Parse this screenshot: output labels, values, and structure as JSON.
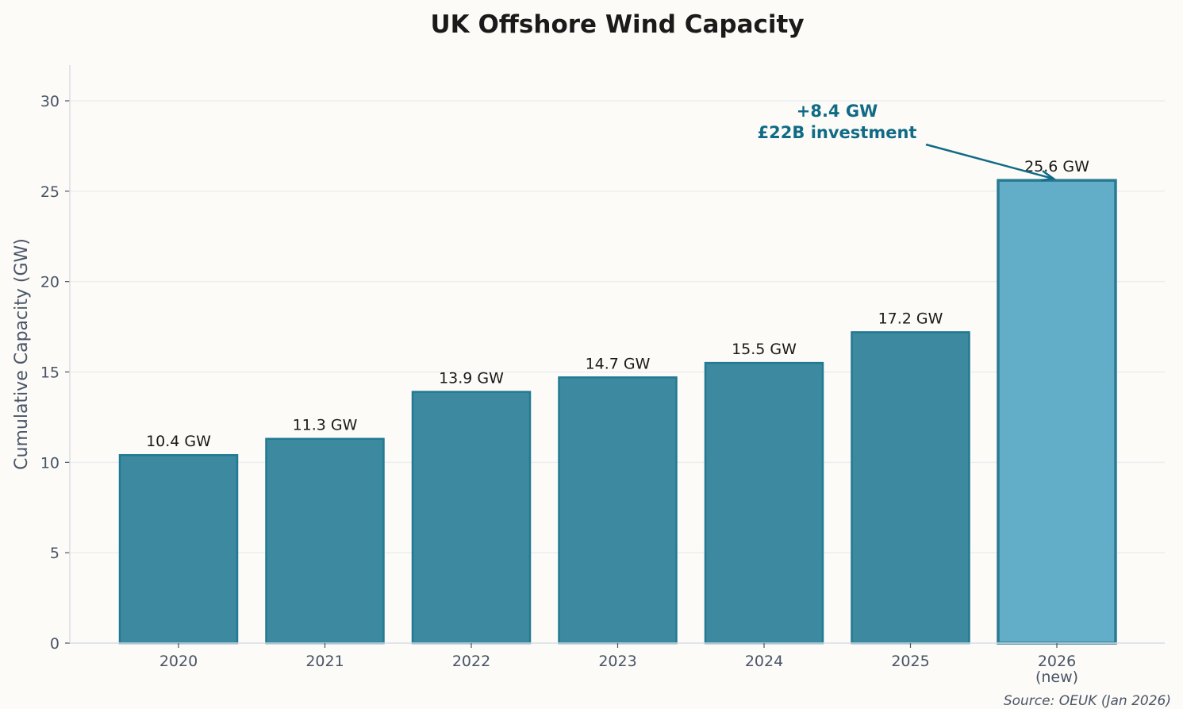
{
  "chart_data": {
    "type": "bar",
    "title": "UK Offshore Wind Capacity",
    "xlabel": "",
    "ylabel": "Cumulative Capacity (GW)",
    "categories": [
      "2020",
      "2021",
      "2022",
      "2023",
      "2024",
      "2025",
      "2026\n(new)"
    ],
    "values": [
      10.4,
      11.3,
      13.9,
      14.7,
      15.5,
      17.2,
      25.6
    ],
    "data_labels": [
      "10.4 GW",
      "11.3 GW",
      "13.9 GW",
      "14.7 GW",
      "15.5 GW",
      "17.2 GW",
      "25.6 GW"
    ],
    "ylim": [
      0,
      32
    ],
    "yticks": [
      0,
      5,
      10,
      15,
      20,
      25,
      30
    ],
    "grid": "horizontal",
    "annotation": {
      "lines": [
        "+8.4 GW",
        "£22B investment"
      ],
      "target_index": 6
    },
    "source": "Source: OEUK (Jan 2026)",
    "colors": {
      "bar": "#3d899f",
      "bar_edge": "#217a93",
      "highlight_bar": "#62adc8",
      "highlight_edge": "#2a7a92",
      "annotation": "#106b86",
      "grid": "#eceef0",
      "text": "#4a5568"
    }
  }
}
